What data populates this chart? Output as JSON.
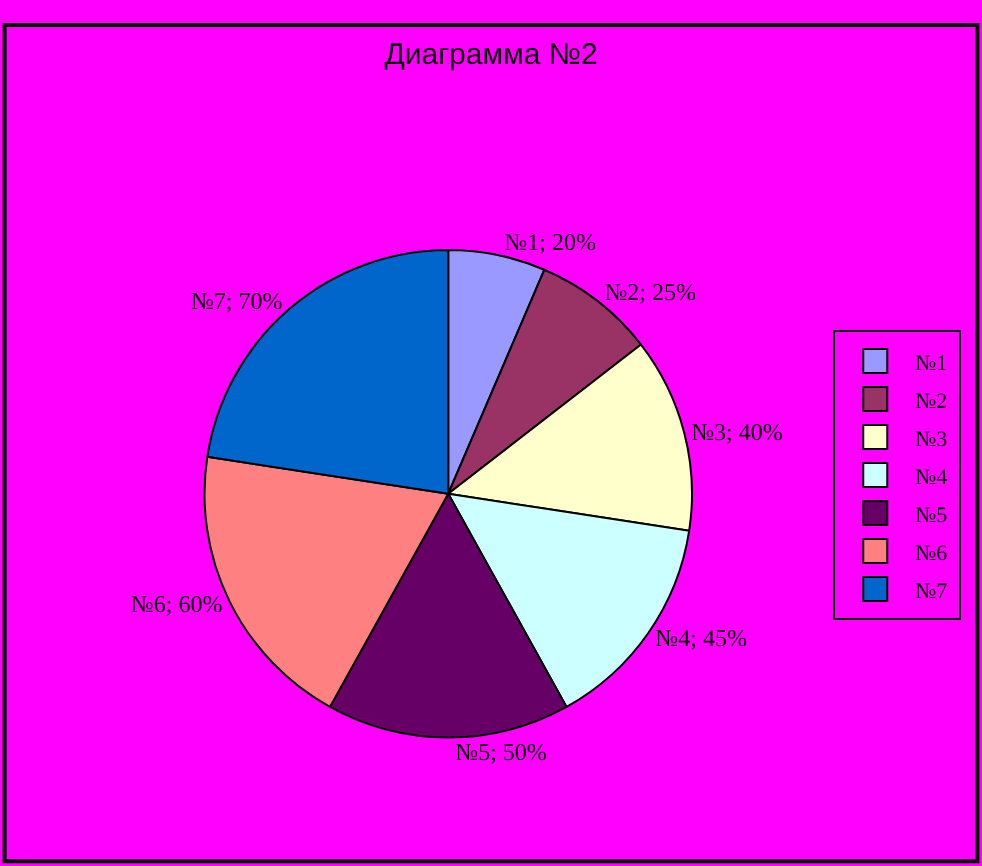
{
  "chart_data": {
    "type": "pie",
    "title": "Диаграмма №2",
    "categories": [
      "№1",
      "№2",
      "№3",
      "№4",
      "№5",
      "№6",
      "№7"
    ],
    "values": [
      20,
      25,
      40,
      45,
      50,
      60,
      70
    ],
    "value_labels": [
      "№1; 20%",
      "№2; 25%",
      "№3; 40%",
      "№4; 45%",
      "№5; 50%",
      "№6; 60%",
      "№7; 70%"
    ],
    "colors": [
      "#9999ff",
      "#993366",
      "#ffffcc",
      "#ccffff",
      "#660066",
      "#ff8080",
      "#0066cc"
    ],
    "legend": "right"
  }
}
